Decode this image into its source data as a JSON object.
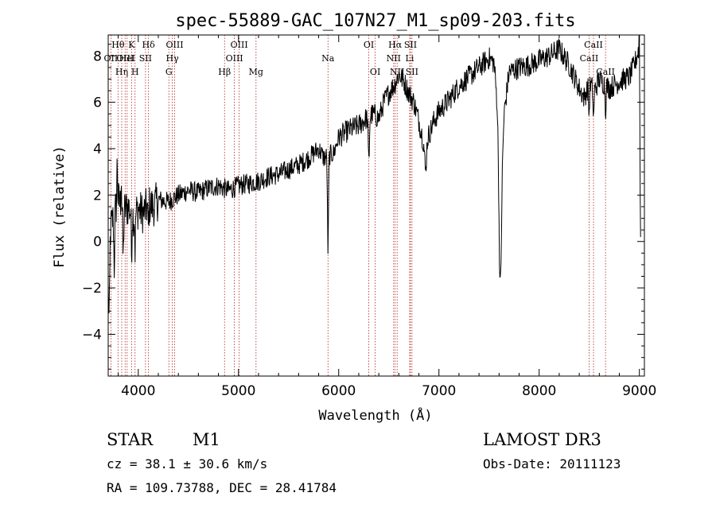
{
  "colors": {
    "spectrum": "#000000",
    "line_marker": "#b22222",
    "axis": "#000000"
  },
  "chart_data": {
    "type": "line",
    "title": "spec-55889-GAC_107N27_M1_sp09-203.fits",
    "xlabel": "Wavelength (Å)",
    "ylabel": "Flux (relative)",
    "xlim": [
      3700,
      9050
    ],
    "ylim": [
      -5.8,
      8.9
    ],
    "xticks": [
      4000,
      5000,
      6000,
      7000,
      8000,
      9000
    ],
    "yticks": [
      -4,
      -2,
      0,
      2,
      4,
      6,
      8
    ],
    "grid": false,
    "anchors": [
      [
        3700,
        -1.5
      ],
      [
        3720,
        0.5
      ],
      [
        3760,
        1.2
      ],
      [
        3800,
        1.8
      ],
      [
        3850,
        1.3
      ],
      [
        3900,
        1.5
      ],
      [
        3950,
        1.1
      ],
      [
        4000,
        1.4
      ],
      [
        4050,
        1.2
      ],
      [
        4100,
        1.6
      ],
      [
        4150,
        1.5
      ],
      [
        4200,
        1.8
      ],
      [
        4300,
        1.7
      ],
      [
        4400,
        2.0
      ],
      [
        4500,
        2.2
      ],
      [
        4600,
        2.1
      ],
      [
        4700,
        2.3
      ],
      [
        4800,
        2.4
      ],
      [
        4900,
        2.2
      ],
      [
        5000,
        2.4
      ],
      [
        5100,
        2.5
      ],
      [
        5200,
        2.6
      ],
      [
        5300,
        2.8
      ],
      [
        5400,
        2.9
      ],
      [
        5500,
        3.1
      ],
      [
        5600,
        3.3
      ],
      [
        5700,
        3.6
      ],
      [
        5800,
        4.0
      ],
      [
        5850,
        3.6
      ],
      [
        5950,
        3.8
      ],
      [
        6000,
        4.5
      ],
      [
        6100,
        4.8
      ],
      [
        6200,
        5.0
      ],
      [
        6300,
        5.4
      ],
      [
        6350,
        5.5
      ],
      [
        6400,
        5.3
      ],
      [
        6450,
        6.0
      ],
      [
        6500,
        6.4
      ],
      [
        6560,
        6.8
      ],
      [
        6600,
        7.2
      ],
      [
        6650,
        6.9
      ],
      [
        6700,
        6.4
      ],
      [
        6750,
        6.0
      ],
      [
        6800,
        5.2
      ],
      [
        6850,
        4.2
      ],
      [
        6900,
        4.6
      ],
      [
        6950,
        5.2
      ],
      [
        7000,
        5.6
      ],
      [
        7100,
        6.1
      ],
      [
        7200,
        6.7
      ],
      [
        7300,
        7.1
      ],
      [
        7400,
        7.5
      ],
      [
        7500,
        7.9
      ],
      [
        7550,
        7.7
      ],
      [
        7580,
        6.0
      ],
      [
        7600,
        3.5
      ],
      [
        7620,
        1.8
      ],
      [
        7650,
        5.5
      ],
      [
        7700,
        7.3
      ],
      [
        7800,
        7.5
      ],
      [
        7900,
        7.6
      ],
      [
        8000,
        7.8
      ],
      [
        8100,
        8.0
      ],
      [
        8200,
        8.3
      ],
      [
        8300,
        7.6
      ],
      [
        8400,
        6.6
      ],
      [
        8450,
        6.2
      ],
      [
        8500,
        6.8
      ],
      [
        8550,
        6.5
      ],
      [
        8600,
        7.0
      ],
      [
        8700,
        6.6
      ],
      [
        8800,
        6.9
      ],
      [
        8900,
        7.1
      ],
      [
        8950,
        7.6
      ],
      [
        9000,
        8.4
      ],
      [
        9010,
        0.6
      ]
    ],
    "dips": [
      {
        "center": 5893,
        "depth": 4.1,
        "width": 7
      },
      {
        "center": 6300,
        "depth": 2.0,
        "width": 8
      },
      {
        "center": 6867,
        "depth": 1.3,
        "width": 12
      },
      {
        "center": 7610,
        "depth": 4.5,
        "width": 14
      },
      {
        "center": 8498,
        "depth": 1.4,
        "width": 6
      },
      {
        "center": 8542,
        "depth": 1.3,
        "width": 6
      },
      {
        "center": 8662,
        "depth": 1.1,
        "width": 6
      },
      {
        "center": 3710,
        "depth": 2.8,
        "width": 8
      },
      {
        "center": 3760,
        "depth": 2.3,
        "width": 6
      },
      {
        "center": 3850,
        "depth": 2.0,
        "width": 6
      },
      {
        "center": 3933,
        "depth": 1.8,
        "width": 5
      },
      {
        "center": 3968,
        "depth": 1.6,
        "width": 5
      },
      {
        "center": 4100,
        "depth": 1.0,
        "width": 6
      }
    ],
    "spikes": [
      {
        "center": 3790,
        "height": 1.8,
        "width": 5
      },
      {
        "center": 3830,
        "height": 1.6,
        "width": 4
      },
      {
        "center": 9000,
        "height": 0.9,
        "width": 4
      }
    ],
    "line_markers": [
      {
        "x": 3727,
        "label": "OII",
        "row": 1
      },
      {
        "x": 3798,
        "label": "Hθ",
        "row": 0
      },
      {
        "x": 3835,
        "label": "Hη",
        "row": 2
      },
      {
        "x": 3869,
        "label": "OIII",
        "row": 1
      },
      {
        "x": 3889,
        "label": "HeI",
        "row": 1
      },
      {
        "x": 3933,
        "label": "K",
        "row": 0
      },
      {
        "x": 3968,
        "label": "H",
        "row": 2
      },
      {
        "x": 4072,
        "label": "SII",
        "row": 1
      },
      {
        "x": 4102,
        "label": "Hδ",
        "row": 0
      },
      {
        "x": 4305,
        "label": "G",
        "row": 2
      },
      {
        "x": 4340,
        "label": "Hγ",
        "row": 1
      },
      {
        "x": 4363,
        "label": "OIII",
        "row": 0
      },
      {
        "x": 4861,
        "label": "Hβ",
        "row": 2
      },
      {
        "x": 4959,
        "label": "OIII",
        "row": 1
      },
      {
        "x": 5007,
        "label": "OIII",
        "row": 0
      },
      {
        "x": 5175,
        "label": "Mg",
        "row": 2
      },
      {
        "x": 5893,
        "label": "Na",
        "row": 1
      },
      {
        "x": 6300,
        "label": "OI",
        "row": 0
      },
      {
        "x": 6364,
        "label": "OI",
        "row": 2
      },
      {
        "x": 6548,
        "label": "NII",
        "row": 1
      },
      {
        "x": 6563,
        "label": "Hα",
        "row": 0
      },
      {
        "x": 6583,
        "label": "NII",
        "row": 2
      },
      {
        "x": 6708,
        "label": "Li",
        "row": 1
      },
      {
        "x": 6716,
        "label": "SII",
        "row": 0
      },
      {
        "x": 6731,
        "label": "SII",
        "row": 2
      },
      {
        "x": 8498,
        "label": "CaII",
        "row": 1
      },
      {
        "x": 8542,
        "label": "CaII",
        "row": 0
      },
      {
        "x": 8662,
        "label": "CaII",
        "row": 2
      }
    ]
  },
  "footer": {
    "object_class": "STAR",
    "subclass": "M1",
    "survey": "LAMOST DR3",
    "cz": "cz = 38.1 ± 30.6 km/s",
    "obs_date": "Obs-Date: 20111123",
    "coords": "RA = 109.73788, DEC =  28.41784"
  }
}
